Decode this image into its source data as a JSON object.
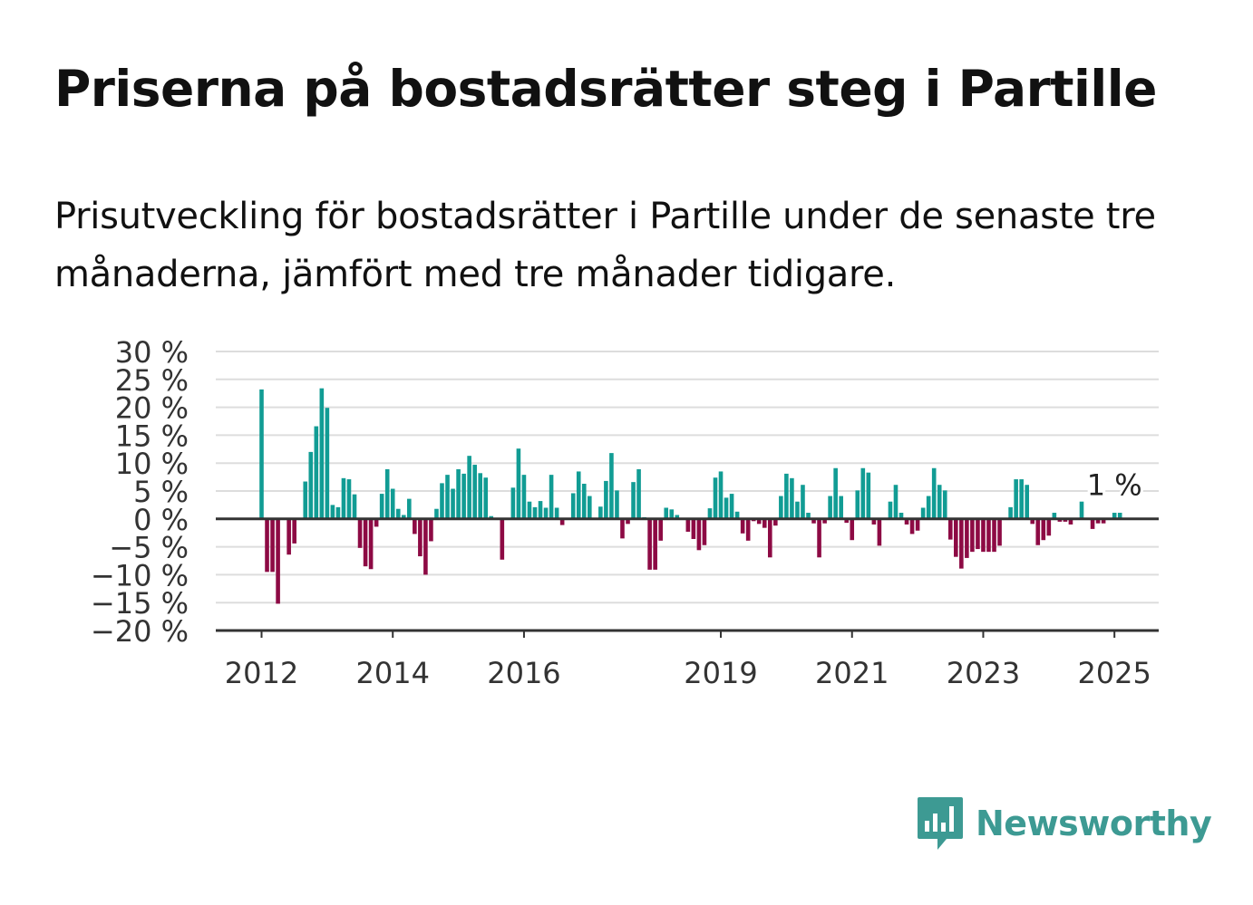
{
  "title": "Priserna på bostadsrätter steg i Partille",
  "subtitle": "Prisutveckling för bostadsrätter i Partille under de senaste tre månaderna, jämfört med tre månader tidigare.",
  "logo": {
    "text": "Newsworthy",
    "icon": "bar-chart-speech-bubble-icon"
  },
  "colors": {
    "positive": "#119c94",
    "negative": "#8d0a44",
    "grid": "#dddddd",
    "axis": "#333333",
    "brand": "#3d9a93"
  },
  "chart_data": {
    "type": "bar",
    "xlabel": "",
    "ylabel": "",
    "ylim": [
      -20,
      30
    ],
    "yticks": [
      30,
      25,
      20,
      15,
      10,
      5,
      0,
      -5,
      -10,
      -15,
      -20
    ],
    "ytick_labels": [
      "30 %",
      "25 %",
      "20 %",
      "15 %",
      "10 %",
      "5 %",
      "0 %",
      "−5 %",
      "−10 %",
      "−15 %",
      "−20 %"
    ],
    "xticks": [
      {
        "label": "2012",
        "index": 0
      },
      {
        "label": "2014",
        "index": 24
      },
      {
        "label": "2016",
        "index": 48
      },
      {
        "label": "2019",
        "index": 84
      },
      {
        "label": "2021",
        "index": 108
      },
      {
        "label": "2023",
        "index": 132
      },
      {
        "label": "2025",
        "index": 156
      }
    ],
    "start": "2012-01",
    "grid": true,
    "legend": "none",
    "annotation": {
      "text": "1 %",
      "index": 156
    },
    "values": [
      23.2,
      -9.5,
      -9.5,
      -15.2,
      0,
      -6.4,
      -4.4,
      0,
      6.7,
      12.0,
      16.6,
      23.4,
      19.9,
      2.5,
      2.1,
      7.3,
      7.1,
      4.4,
      -5.2,
      -8.5,
      -9.0,
      -1.4,
      4.5,
      8.9,
      5.4,
      1.8,
      0.7,
      3.6,
      -2.7,
      -6.7,
      -10.0,
      -4.0,
      1.8,
      6.4,
      7.9,
      5.4,
      8.9,
      8.1,
      11.3,
      9.7,
      8.2,
      7.4,
      0.5,
      0,
      -7.3,
      0,
      5.6,
      12.6,
      7.9,
      3.1,
      2.1,
      3.2,
      2.0,
      7.9,
      2.0,
      -1.1,
      0,
      4.6,
      8.5,
      6.3,
      4.1,
      0,
      2.2,
      6.8,
      11.8,
      5.1,
      -3.5,
      -0.9,
      6.6,
      8.9,
      0.3,
      -9.1,
      -9.1,
      -3.9,
      2.0,
      1.7,
      0.7,
      0,
      -2.3,
      -3.6,
      -5.6,
      -4.7,
      1.9,
      7.4,
      8.5,
      3.8,
      4.5,
      1.3,
      -2.6,
      -3.9,
      -0.4,
      -0.9,
      -1.6,
      -6.9,
      -1.2,
      4.1,
      8.1,
      7.3,
      3.1,
      6.1,
      1.1,
      -0.8,
      -6.9,
      -0.8,
      4.1,
      9.1,
      4.1,
      -0.7,
      -3.8,
      5.1,
      9.1,
      8.3,
      -1.0,
      -4.8,
      0,
      3.1,
      6.1,
      1.1,
      -1.0,
      -2.7,
      -2.1,
      2.0,
      4.1,
      9.1,
      6.1,
      5.1,
      -3.7,
      -6.8,
      -8.9,
      -7.0,
      -5.9,
      -5.4,
      -5.9,
      -5.9,
      -5.9,
      -4.8,
      0,
      2.1,
      7.1,
      7.1,
      6.1,
      -0.9,
      -4.7,
      -3.8,
      -3.0,
      1.1,
      -0.5,
      -0.5,
      -1.0,
      0,
      3.1,
      0,
      -1.8,
      -0.8,
      -0.8,
      0,
      1.1,
      1.1
    ]
  }
}
